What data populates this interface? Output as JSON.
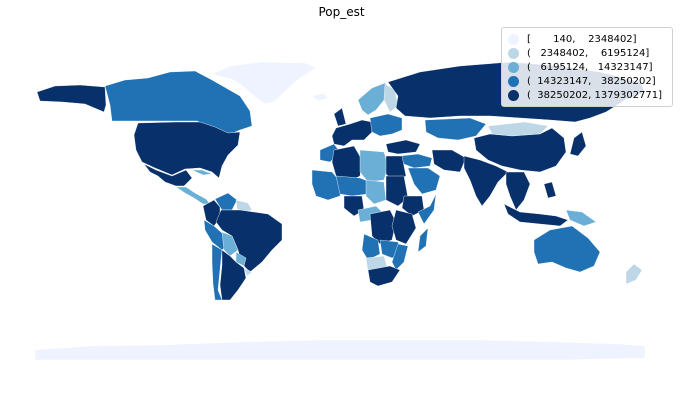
{
  "chart_data": {
    "type": "choropleth",
    "title": "Pop_est",
    "variable": "Pop_est",
    "scheme": "quantiles",
    "colormap": "Blues",
    "classes": [
      {
        "label": "[       140,    2348402]",
        "min": 140,
        "max": 2348402,
        "color": "#eff3ff"
      },
      {
        "label": "(   2348402,    6195124]",
        "min": 2348402,
        "max": 6195124,
        "color": "#bdd7e7"
      },
      {
        "label": "(   6195124,   14323147]",
        "min": 6195124,
        "max": 14323147,
        "color": "#6baed6"
      },
      {
        "label": "(  14323147,   38250202]",
        "min": 14323147,
        "max": 38250202,
        "color": "#2171b5"
      },
      {
        "label": "(  38250202, 1379302771]",
        "min": 38250202,
        "max": 1379302771,
        "color": "#08306b"
      }
    ],
    "legend_position": "top-right",
    "regions": [
      {
        "name": "Canada",
        "class": 3
      },
      {
        "name": "United States",
        "class": 4
      },
      {
        "name": "Alaska",
        "class": 4
      },
      {
        "name": "Greenland",
        "class": 0
      },
      {
        "name": "Mexico",
        "class": 4
      },
      {
        "name": "Central America",
        "class": 2
      },
      {
        "name": "Cuba",
        "class": 2
      },
      {
        "name": "Colombia",
        "class": 4
      },
      {
        "name": "Venezuela",
        "class": 3
      },
      {
        "name": "Guianas",
        "class": 1
      },
      {
        "name": "Brazil",
        "class": 4
      },
      {
        "name": "Peru",
        "class": 3
      },
      {
        "name": "Bolivia",
        "class": 2
      },
      {
        "name": "Paraguay",
        "class": 2
      },
      {
        "name": "Chile",
        "class": 3
      },
      {
        "name": "Argentina",
        "class": 4
      },
      {
        "name": "Uruguay",
        "class": 1
      },
      {
        "name": "Iceland",
        "class": 0
      },
      {
        "name": "Scandinavia",
        "class": 2
      },
      {
        "name": "Finland",
        "class": 1
      },
      {
        "name": "United Kingdom",
        "class": 4
      },
      {
        "name": "Western Europe",
        "class": 4
      },
      {
        "name": "Eastern Europe",
        "class": 3
      },
      {
        "name": "Russia",
        "class": 4
      },
      {
        "name": "Turkey",
        "class": 4
      },
      {
        "name": "Middle East",
        "class": 3
      },
      {
        "name": "Saudi Arabia",
        "class": 3
      },
      {
        "name": "Iran",
        "class": 4
      },
      {
        "name": "Kazakhstan",
        "class": 3
      },
      {
        "name": "Mongolia",
        "class": 1
      },
      {
        "name": "China",
        "class": 4
      },
      {
        "name": "India",
        "class": 4
      },
      {
        "name": "Southeast Asia",
        "class": 4
      },
      {
        "name": "Japan",
        "class": 4
      },
      {
        "name": "Indonesia",
        "class": 4
      },
      {
        "name": "Philippines",
        "class": 4
      },
      {
        "name": "Papua New Guinea",
        "class": 2
      },
      {
        "name": "Australia",
        "class": 3
      },
      {
        "name": "New Zealand",
        "class": 1
      },
      {
        "name": "Morocco",
        "class": 3
      },
      {
        "name": "Algeria",
        "class": 4
      },
      {
        "name": "Libya",
        "class": 2
      },
      {
        "name": "Egypt",
        "class": 4
      },
      {
        "name": "West Africa",
        "class": 3
      },
      {
        "name": "Nigeria",
        "class": 4
      },
      {
        "name": "Mali / Niger",
        "class": 3
      },
      {
        "name": "Chad",
        "class": 2
      },
      {
        "name": "Sudan",
        "class": 4
      },
      {
        "name": "Ethiopia",
        "class": 4
      },
      {
        "name": "Somalia",
        "class": 3
      },
      {
        "name": "Central Africa",
        "class": 2
      },
      {
        "name": "DR Congo",
        "class": 4
      },
      {
        "name": "East Africa",
        "class": 4
      },
      {
        "name": "Angola",
        "class": 3
      },
      {
        "name": "Zambia / Malawi",
        "class": 3
      },
      {
        "name": "Namibia / Botswana",
        "class": 1
      },
      {
        "name": "Mozambique",
        "class": 3
      },
      {
        "name": "South Africa",
        "class": 4
      },
      {
        "name": "Madagascar",
        "class": 3
      },
      {
        "name": "Antarctica",
        "class": 0
      }
    ]
  }
}
